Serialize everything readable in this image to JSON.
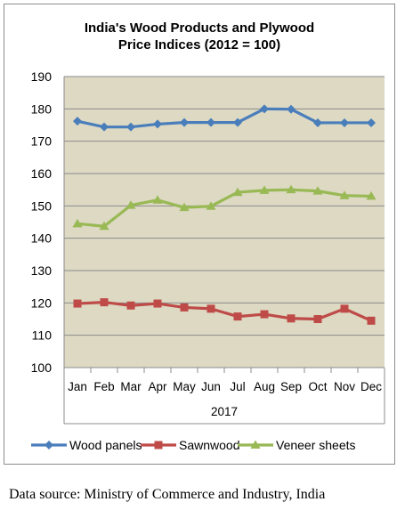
{
  "chart_data": {
    "type": "line",
    "title_lines": [
      "India's Wood Products and Plywood",
      "Price Indices (2012 = 100)"
    ],
    "categories": [
      "Jan",
      "Feb",
      "Mar",
      "Apr",
      "May",
      "Jun",
      "Jul",
      "Aug",
      "Sep",
      "Oct",
      "Nov",
      "Dec"
    ],
    "x_group_label": "2017",
    "y_ticks": [
      "100",
      "110",
      "120",
      "130",
      "140",
      "150",
      "160",
      "170",
      "180",
      "190"
    ],
    "ylim": [
      100,
      190
    ],
    "grid": "horizontal",
    "plot_background": "#ddd9c3",
    "legend_position": "bottom",
    "series": [
      {
        "name": "Wood panels",
        "color": "#4a7ebb",
        "marker": "diamond",
        "values": [
          176.2,
          174.4,
          174.4,
          175.3,
          175.8,
          175.8,
          175.8,
          180.0,
          179.9,
          175.7,
          175.7,
          175.7
        ]
      },
      {
        "name": "Sawnwood",
        "color": "#be4b48",
        "marker": "square",
        "values": [
          119.8,
          120.2,
          119.2,
          119.8,
          118.6,
          118.2,
          115.8,
          116.5,
          115.2,
          115.0,
          118.2,
          114.5
        ]
      },
      {
        "name": "Veneer sheets",
        "color": "#98b954",
        "marker": "triangle",
        "values": [
          144.5,
          143.7,
          150.2,
          151.8,
          149.5,
          149.9,
          154.2,
          154.8,
          155.0,
          154.6,
          153.2,
          153.0
        ]
      }
    ]
  },
  "footer": {
    "source_note": "Data source: Ministry of Commerce and Industry, India"
  }
}
